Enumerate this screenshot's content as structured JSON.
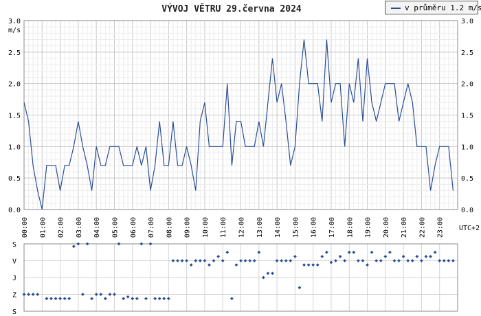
{
  "title": "VÝVOJ VĚTRU  29.června 2024",
  "legend": {
    "label": "v průměru 1.2 m/s",
    "color": "#2a4e96"
  },
  "chart_data": [
    {
      "type": "line",
      "series": [
        {
          "name": "v průměru 1.2 m/s",
          "color": "#2a4e96",
          "x": [
            0.0,
            0.25,
            0.5,
            0.75,
            1.0,
            1.25,
            1.5,
            1.75,
            2.0,
            2.25,
            2.5,
            2.75,
            3.0,
            3.25,
            3.5,
            3.75,
            4.0,
            4.25,
            4.5,
            4.75,
            5.0,
            5.25,
            5.5,
            5.75,
            6.0,
            6.25,
            6.5,
            6.75,
            7.0,
            7.25,
            7.5,
            7.75,
            8.0,
            8.25,
            8.5,
            8.75,
            9.0,
            9.25,
            9.5,
            9.75,
            10.0,
            10.25,
            10.5,
            10.75,
            11.0,
            11.25,
            11.5,
            11.75,
            12.0,
            12.25,
            12.5,
            12.75,
            13.0,
            13.25,
            13.5,
            13.75,
            14.0,
            14.25,
            14.5,
            14.75,
            15.0,
            15.25,
            15.5,
            15.75,
            16.0,
            16.25,
            16.5,
            16.75,
            17.0,
            17.25,
            17.5,
            17.75,
            18.0,
            18.25,
            18.5,
            18.75,
            19.0,
            19.25,
            19.5,
            19.75,
            20.0,
            20.25,
            20.5,
            20.75,
            21.0,
            21.25,
            21.5,
            21.75,
            22.0,
            22.25,
            22.5,
            22.75,
            23.0,
            23.25,
            23.5,
            23.75
          ],
          "y": [
            1.7,
            1.4,
            0.7,
            0.3,
            0.0,
            0.7,
            0.7,
            0.7,
            0.3,
            0.7,
            0.7,
            1.0,
            1.4,
            1.0,
            0.7,
            0.3,
            1.0,
            0.7,
            0.7,
            1.0,
            1.0,
            1.0,
            0.7,
            0.7,
            0.7,
            1.0,
            0.7,
            1.0,
            0.3,
            0.7,
            1.4,
            0.7,
            0.7,
            1.4,
            0.7,
            0.7,
            1.0,
            0.7,
            0.3,
            1.4,
            1.7,
            1.0,
            1.0,
            1.0,
            1.0,
            2.0,
            0.7,
            1.4,
            1.4,
            1.0,
            1.0,
            1.0,
            1.4,
            1.0,
            1.7,
            2.4,
            1.7,
            2.0,
            1.4,
            0.7,
            1.0,
            2.0,
            2.7,
            2.0,
            2.0,
            2.0,
            1.4,
            2.7,
            1.7,
            2.0,
            2.0,
            1.0,
            2.0,
            1.7,
            2.4,
            1.4,
            2.4,
            1.7,
            1.4,
            1.7,
            2.0,
            2.0,
            2.0,
            1.4,
            1.7,
            2.0,
            1.7,
            1.0,
            1.0,
            1.0,
            0.3,
            0.7,
            1.0,
            1.0,
            1.0,
            0.3
          ]
        }
      ],
      "xlabel": "",
      "ylabel": "m/s",
      "xlim": [
        0,
        24
      ],
      "ylim": [
        0.0,
        3.0
      ],
      "yticks": [
        "0.0",
        "0.5",
        "1.0",
        "1.5",
        "2.0",
        "2.5",
        "3.0"
      ],
      "xtick_labels": [
        "00:00",
        "01:00",
        "02:00",
        "03:00",
        "04:00",
        "05:00",
        "06:00",
        "07:00",
        "08:00",
        "09:00",
        "10:00",
        "11:00",
        "12:00",
        "13:00",
        "14:00",
        "15:00",
        "16:00",
        "17:00",
        "18:00",
        "19:00",
        "20:00",
        "21:00",
        "22:00",
        "23:00"
      ],
      "x_unit_label": "UTC+2",
      "grid": true,
      "legend_position": "top-right"
    },
    {
      "type": "scatter",
      "xlim": [
        0,
        24
      ],
      "ylim": [
        0,
        4
      ],
      "ytick_labels": [
        "S",
        "Z",
        "J",
        "V",
        "S"
      ],
      "grid": true,
      "series": [
        {
          "color": "#2a4e96",
          "x": [
            0.0,
            0.25,
            0.5,
            0.75,
            1.25,
            1.5,
            1.75,
            2.0,
            2.25,
            2.5,
            2.75,
            3.0,
            3.25,
            3.5,
            3.75,
            4.0,
            4.25,
            4.5,
            4.75,
            5.0,
            5.25,
            5.5,
            5.75,
            6.0,
            6.25,
            6.5,
            6.75,
            7.0,
            7.25,
            7.5,
            7.75,
            8.0,
            8.25,
            8.5,
            8.75,
            9.0,
            9.25,
            9.5,
            9.75,
            10.0,
            10.25,
            10.5,
            10.75,
            11.0,
            11.25,
            11.5,
            11.75,
            12.0,
            12.25,
            12.5,
            12.75,
            13.0,
            13.25,
            13.5,
            13.75,
            14.0,
            14.25,
            14.5,
            14.75,
            15.0,
            15.25,
            15.5,
            15.75,
            16.0,
            16.25,
            16.5,
            16.75,
            17.0,
            17.25,
            17.5,
            17.75,
            18.0,
            18.25,
            18.5,
            18.75,
            19.0,
            19.25,
            19.5,
            19.75,
            20.0,
            20.25,
            20.5,
            20.75,
            21.0,
            21.25,
            21.5,
            21.75,
            22.0,
            22.25,
            22.5,
            22.75,
            23.0,
            23.25,
            23.5,
            23.75
          ],
          "y": [
            1.0,
            1.0,
            1.0,
            1.0,
            0.75,
            0.75,
            0.75,
            0.75,
            0.75,
            0.75,
            3.85,
            4.0,
            1.0,
            4.0,
            0.75,
            1.0,
            1.0,
            0.75,
            1.0,
            1.0,
            4.0,
            0.75,
            0.85,
            0.75,
            0.75,
            4.0,
            0.75,
            4.0,
            0.75,
            0.75,
            0.75,
            0.75,
            3.0,
            3.0,
            3.0,
            3.0,
            2.75,
            3.0,
            3.0,
            3.0,
            2.75,
            3.0,
            3.25,
            3.0,
            3.5,
            0.75,
            2.75,
            3.0,
            3.0,
            3.0,
            3.0,
            3.5,
            2.0,
            2.25,
            2.25,
            3.0,
            3.0,
            3.0,
            3.0,
            3.25,
            1.4,
            2.75,
            2.75,
            2.75,
            2.75,
            3.25,
            3.5,
            2.9,
            3.0,
            3.25,
            3.0,
            3.5,
            3.5,
            3.0,
            3.0,
            2.75,
            3.5,
            3.0,
            3.0,
            3.25,
            3.5,
            3.0,
            3.0,
            3.25,
            3.0,
            3.0,
            3.25,
            3.0,
            3.25,
            3.25,
            3.5,
            3.0,
            3.0,
            3.0,
            3.0
          ]
        }
      ]
    }
  ]
}
